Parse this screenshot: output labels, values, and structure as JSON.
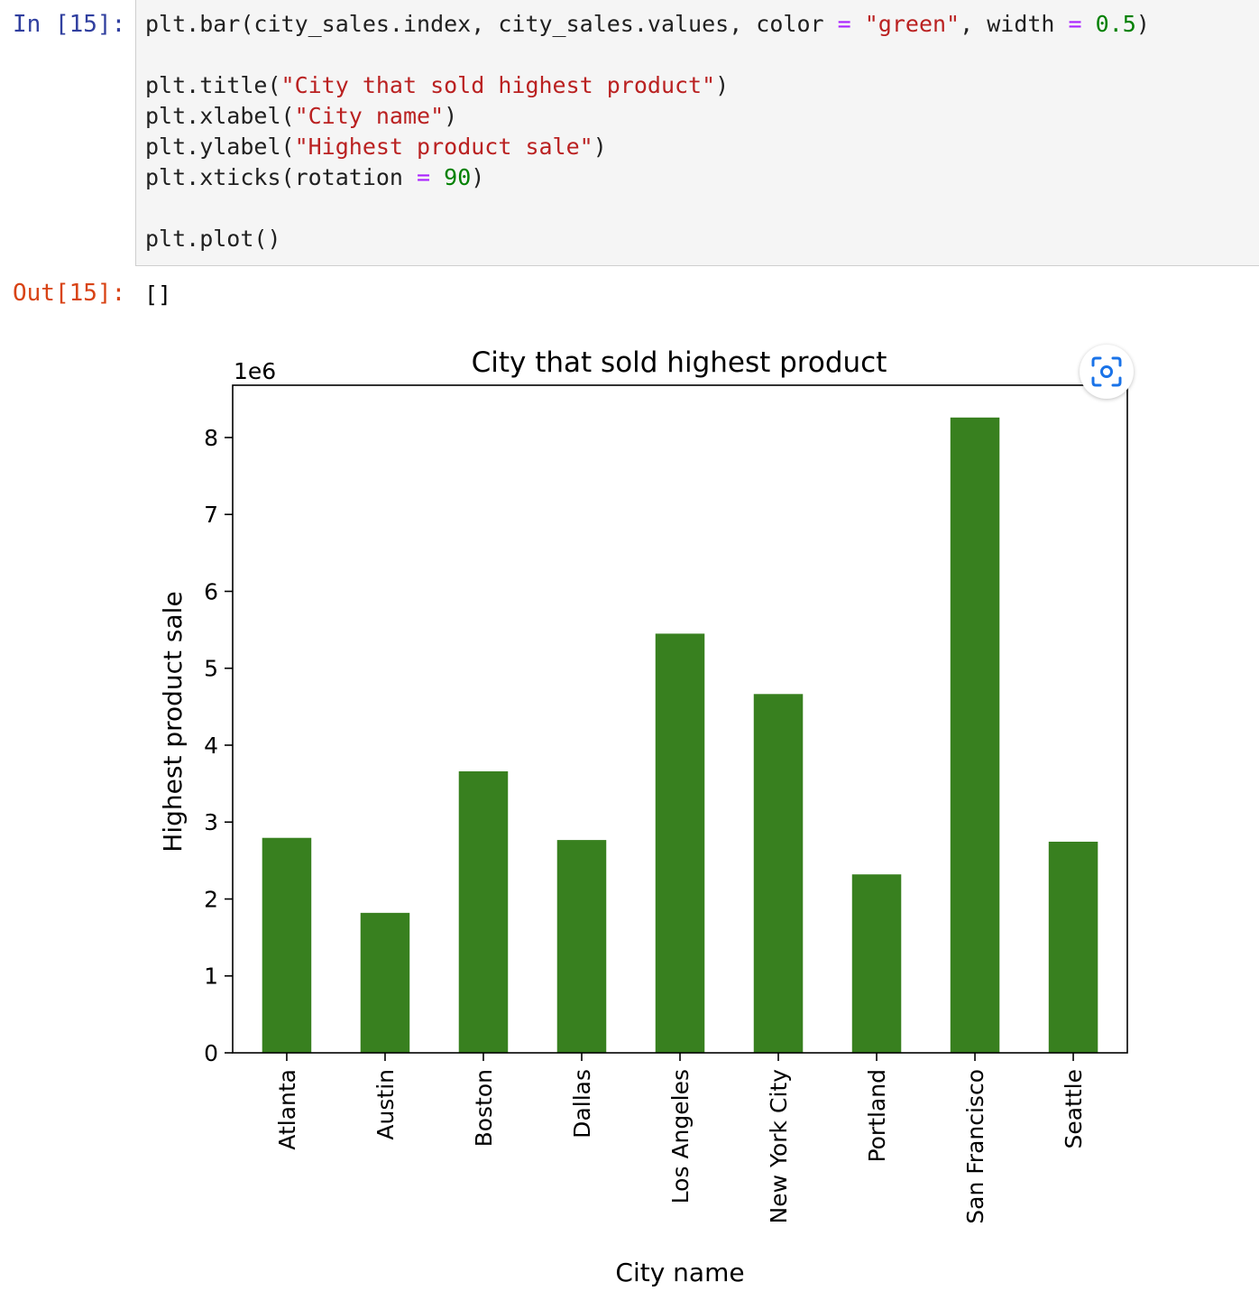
{
  "cell": {
    "in_prompt": "In [15]:",
    "out_prompt": "Out[15]:",
    "output_text": "[]",
    "code": {
      "line1": {
        "a": "plt.bar(city_sales.index, city_sales.values, color ",
        "op1": "=",
        "b": " ",
        "str1": "\"green\"",
        "c": ", width ",
        "op2": "=",
        "d": " ",
        "num1": "0.5",
        "e": ")"
      },
      "line3": {
        "a": "plt.title(",
        "str1": "\"City that sold highest product\"",
        "b": ")"
      },
      "line4": {
        "a": "plt.xlabel(",
        "str1": "\"City name\"",
        "b": ")"
      },
      "line5": {
        "a": "plt.ylabel(",
        "str1": "\"Highest product sale\"",
        "b": ")"
      },
      "line6": {
        "a": "plt.xticks(rotation ",
        "op1": "=",
        "b": " ",
        "num1": "90",
        "c": ")"
      },
      "line8": {
        "a": "plt.plot()"
      }
    }
  },
  "toolbar": {
    "screenshot_icon": "camera-capture-icon"
  },
  "chart_data": {
    "type": "bar",
    "title": "City that sold highest product",
    "xlabel": "City name",
    "ylabel": "Highest product sale",
    "offset_label": "1e6",
    "categories": [
      "Atlanta",
      "Austin",
      "Boston",
      "Dallas",
      "Los Angeles",
      "New York City",
      "Portland",
      "San Francisco",
      "Seattle"
    ],
    "values": [
      2795000,
      1820000,
      3660000,
      2767000,
      5450000,
      4665000,
      2320000,
      8260000,
      2745000
    ],
    "yticks": [
      "0",
      "1",
      "2",
      "3",
      "4",
      "5",
      "6",
      "7",
      "8"
    ],
    "ylim": [
      0,
      8680000
    ],
    "bar_color": "#38801f",
    "bar_width": 0.5,
    "xtick_rotation": 90,
    "grid": false
  }
}
